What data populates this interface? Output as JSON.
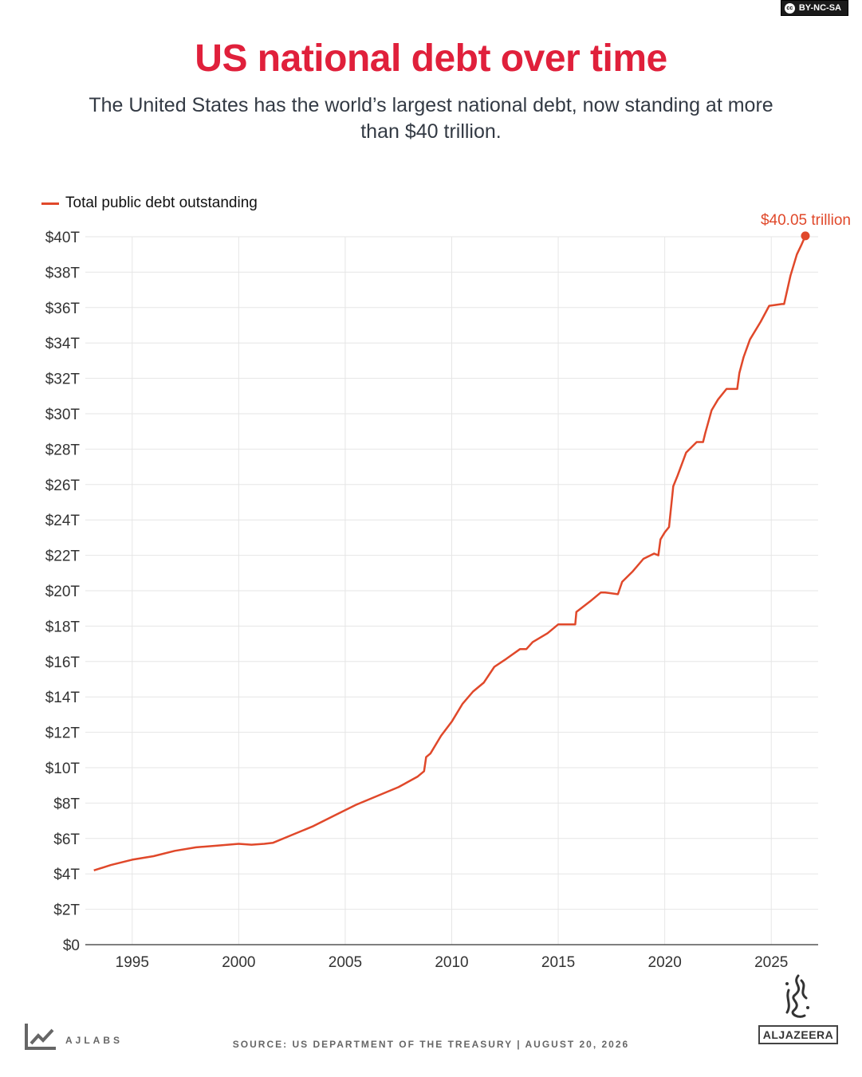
{
  "license_label": "BY-NC-SA",
  "license_icon": "cc-icon",
  "title": "US national debt over time",
  "subtitle": "The United States has the world’s largest national debt, now standing at more than $40 trillion.",
  "legend_label": "Total public debt outstanding",
  "footer": {
    "left_brand": "AJLABS",
    "source": "SOURCE: US DEPARTMENT OF THE TREASURY  |  AUGUST 20, 2026",
    "right_brand": "ALJAZEERA"
  },
  "colors": {
    "title": "#e0203b",
    "line": "#e0482a",
    "grid": "#e6e6e6",
    "axis_text": "#333333"
  },
  "chart_data": {
    "type": "line",
    "title": "US national debt over time",
    "xlabel": "",
    "ylabel": "",
    "xlim": [
      1992.8,
      2027.2
    ],
    "ylim": [
      0,
      40
    ],
    "x_ticks": [
      1995,
      2000,
      2005,
      2010,
      2015,
      2020,
      2025
    ],
    "x_tick_labels": [
      "1995",
      "2000",
      "2005",
      "2010",
      "2015",
      "2020",
      "2025"
    ],
    "y_ticks": [
      0,
      2,
      4,
      6,
      8,
      10,
      12,
      14,
      16,
      18,
      20,
      22,
      24,
      26,
      28,
      30,
      32,
      34,
      36,
      38,
      40
    ],
    "y_tick_labels": [
      "$0",
      "$2T",
      "$4T",
      "$6T",
      "$8T",
      "$10T",
      "$12T",
      "$14T",
      "$16T",
      "$18T",
      "$20T",
      "$22T",
      "$24T",
      "$26T",
      "$28T",
      "$30T",
      "$32T",
      "$34T",
      "$36T",
      "$38T",
      "$40T"
    ],
    "grid": true,
    "legend_position": "top-left",
    "series": [
      {
        "name": "Total public debt outstanding",
        "x": [
          1993.2,
          1994,
          1995,
          1996,
          1997,
          1998,
          1999,
          2000,
          2000.6,
          2001.2,
          2001.6,
          2002.5,
          2003.5,
          2004.5,
          2005.5,
          2006.5,
          2007.5,
          2008.4,
          2008.7,
          2008.8,
          2009.0,
          2009.5,
          2010,
          2010.5,
          2011,
          2011.5,
          2012,
          2012.5,
          2013.2,
          2013.5,
          2013.8,
          2014.5,
          2015.0,
          2015.8,
          2015.85,
          2016.5,
          2017.0,
          2017.2,
          2017.8,
          2018.0,
          2018.5,
          2019.0,
          2019.5,
          2019.7,
          2019.8,
          2020.0,
          2020.2,
          2020.4,
          2020.6,
          2021.0,
          2021.5,
          2021.8,
          2021.9,
          2022.2,
          2022.5,
          2022.9,
          2023.4,
          2023.5,
          2023.7,
          2024.0,
          2024.5,
          2024.9,
          2025.5,
          2025.6,
          2025.9,
          2026.2,
          2026.4,
          2026.6
        ],
        "values": [
          4.2,
          4.5,
          4.8,
          5.0,
          5.3,
          5.5,
          5.6,
          5.7,
          5.65,
          5.7,
          5.75,
          6.2,
          6.7,
          7.3,
          7.9,
          8.4,
          8.9,
          9.5,
          9.8,
          10.6,
          10.8,
          11.8,
          12.6,
          13.6,
          14.3,
          14.8,
          15.7,
          16.1,
          16.7,
          16.7,
          17.1,
          17.6,
          18.1,
          18.1,
          18.8,
          19.4,
          19.9,
          19.9,
          19.8,
          20.5,
          21.1,
          21.8,
          22.1,
          22.0,
          22.9,
          23.3,
          23.6,
          25.9,
          26.5,
          27.8,
          28.4,
          28.4,
          28.9,
          30.2,
          30.8,
          31.4,
          31.4,
          32.3,
          33.2,
          34.2,
          35.2,
          36.1,
          36.2,
          36.2,
          37.8,
          39.0,
          39.5,
          40.05
        ]
      }
    ],
    "annotations": [
      {
        "text": "$40.05 trillion",
        "x": 2026.6,
        "y": 40.05
      }
    ]
  }
}
